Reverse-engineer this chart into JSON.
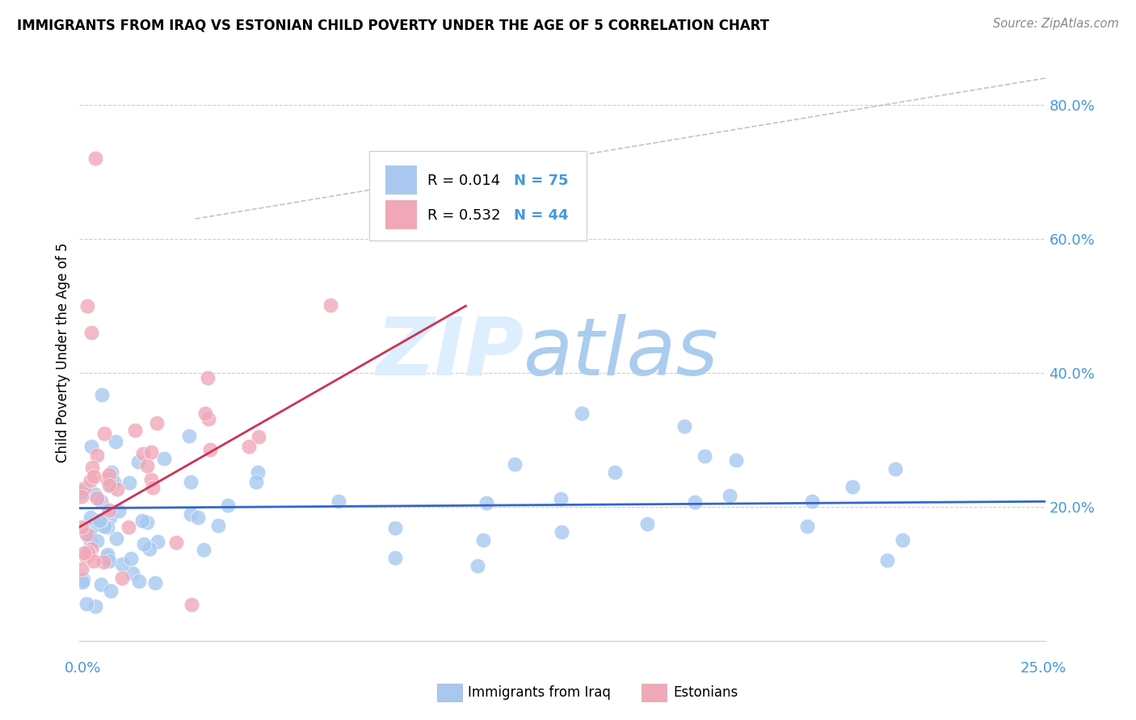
{
  "title": "IMMIGRANTS FROM IRAQ VS ESTONIAN CHILD POVERTY UNDER THE AGE OF 5 CORRELATION CHART",
  "source": "Source: ZipAtlas.com",
  "ylabel": "Child Poverty Under the Age of 5",
  "xlim": [
    0.0,
    0.25
  ],
  "ylim": [
    0.0,
    0.86
  ],
  "yticks": [
    0.0,
    0.2,
    0.4,
    0.6,
    0.8
  ],
  "ytick_labels": [
    "",
    "20.0%",
    "40.0%",
    "60.0%",
    "80.0%"
  ],
  "series1_label": "Immigrants from Iraq",
  "series2_label": "Estonians",
  "series1_color": "#a8c8f0",
  "series2_color": "#f0a8b8",
  "trendline1_color": "#3366cc",
  "trendline2_color": "#cc3355",
  "tick_color": "#4499dd",
  "grid_color": "#ccccdd",
  "watermark_zip_color": "#ddeeff",
  "watermark_atlas_color": "#aaccee"
}
